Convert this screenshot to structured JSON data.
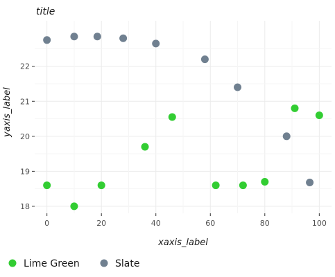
{
  "chart_data": {
    "type": "scatter",
    "title": "title",
    "xlabel": "xaxis_label",
    "ylabel": "yaxis_label",
    "xlim": [
      -4.5,
      104.5
    ],
    "ylim": [
      17.8,
      23.3
    ],
    "x_ticks": [
      0,
      20,
      40,
      60,
      80,
      100
    ],
    "y_ticks": [
      18,
      19,
      20,
      21,
      22
    ],
    "grid": true,
    "legend_position": "bottom",
    "series": [
      {
        "name": "Slate",
        "color": "#708090",
        "points": [
          {
            "x": 0,
            "y": 22.75
          },
          {
            "x": 10,
            "y": 22.85
          },
          {
            "x": 18.5,
            "y": 22.85
          },
          {
            "x": 28,
            "y": 22.8
          },
          {
            "x": 40,
            "y": 22.65
          },
          {
            "x": 58,
            "y": 22.2
          },
          {
            "x": 70,
            "y": 21.4
          },
          {
            "x": 88,
            "y": 20.0
          },
          {
            "x": 96.5,
            "y": 18.68
          }
        ]
      },
      {
        "name": "Lime Green",
        "color": "#32CD32",
        "points": [
          {
            "x": 0,
            "y": 18.6
          },
          {
            "x": 10,
            "y": 18.0
          },
          {
            "x": 20,
            "y": 18.6
          },
          {
            "x": 36,
            "y": 19.7
          },
          {
            "x": 46,
            "y": 20.55
          },
          {
            "x": 62,
            "y": 18.6
          },
          {
            "x": 72,
            "y": 18.6
          },
          {
            "x": 80,
            "y": 18.7
          },
          {
            "x": 91,
            "y": 20.8
          },
          {
            "x": 100,
            "y": 20.6
          }
        ]
      }
    ]
  }
}
